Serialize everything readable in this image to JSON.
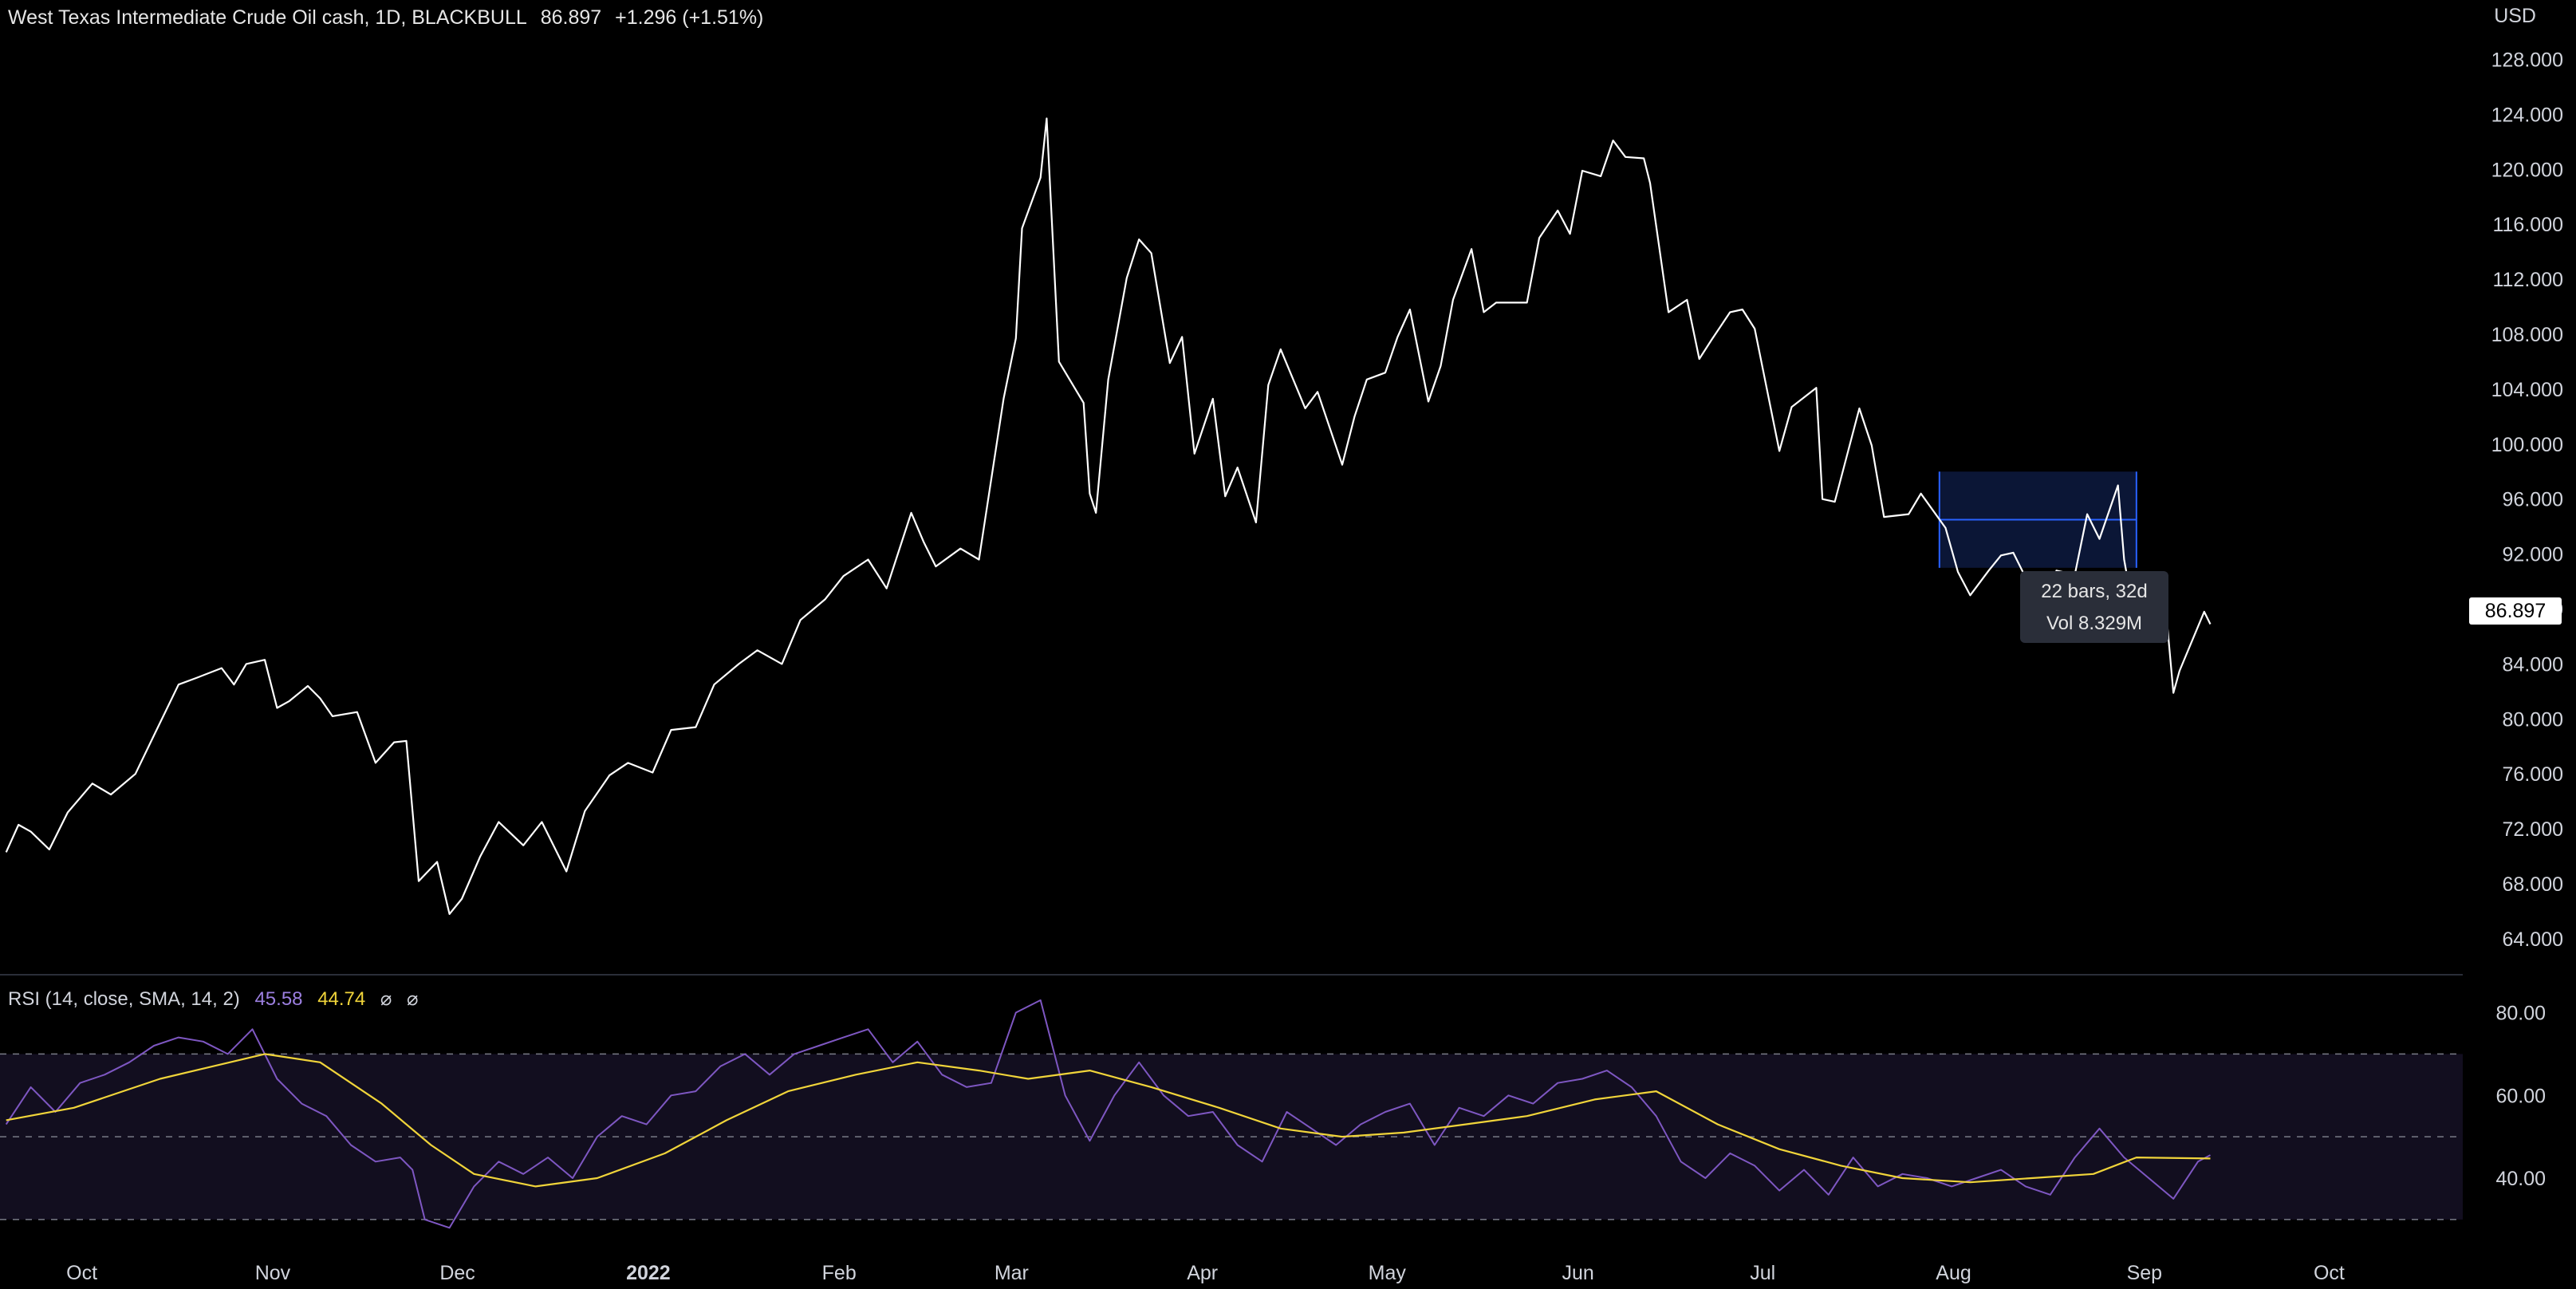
{
  "header": {
    "symbol": "West Texas Intermediate Crude Oil cash, 1D, BLACKBULL",
    "last": "86.897",
    "change": "+1.296 (+1.51%)"
  },
  "currency": "USD",
  "price_tag": "86.897",
  "measure_tooltip": {
    "line1": "22 bars, 32d",
    "line2": "Vol 8.329M"
  },
  "rsi_legend": {
    "label": "RSI (14, close, SMA, 14, 2)",
    "rsi": "45.58",
    "sma": "44.74",
    "icons": [
      "eye-off-icon",
      "eye-off-icon"
    ],
    "icon_glyph": "⌀"
  },
  "colors": {
    "price": "#ffffff",
    "rsi": "#7e57c2",
    "rsi_sma": "#f0d43a",
    "band": "#120e1f",
    "selection": "#0b1636",
    "selection_line": "#2962ff"
  },
  "chart_data": {
    "type": "line",
    "title": "West Texas Intermediate Crude Oil cash, 1D, BLACKBULL",
    "xlabel": "",
    "ylabel": "",
    "x_ticks": [
      "Oct",
      "Nov",
      "Dec",
      "2022",
      "Feb",
      "Mar",
      "Apr",
      "May",
      "Jun",
      "Jul",
      "Aug",
      "Sep",
      "Oct"
    ],
    "x_tick_dates": [
      "2021-10-01",
      "2021-11-01",
      "2021-12-01",
      "2022-01-01",
      "2022-02-01",
      "2022-03-01",
      "2022-04-01",
      "2022-05-01",
      "2022-06-01",
      "2022-07-01",
      "2022-08-01",
      "2022-09-01",
      "2022-10-01"
    ],
    "y_ticks": [
      "64.000",
      "68.000",
      "72.000",
      "76.000",
      "80.000",
      "84.000",
      "88.000",
      "92.000",
      "96.000",
      "100.000",
      "104.000",
      "108.000",
      "112.000",
      "116.000",
      "120.000",
      "124.000",
      "128.000"
    ],
    "ylim": [
      61.5,
      130
    ],
    "series": [
      {
        "points": [
          [
            "2021-09-20",
            70.3
          ],
          [
            "2021-09-22",
            72.3
          ],
          [
            "2021-09-24",
            71.8
          ],
          [
            "2021-09-27",
            70.5
          ],
          [
            "2021-09-30",
            73.2
          ],
          [
            "2021-10-04",
            75.3
          ],
          [
            "2021-10-07",
            74.5
          ],
          [
            "2021-10-11",
            76.0
          ],
          [
            "2021-10-14",
            78.8
          ],
          [
            "2021-10-18",
            82.5
          ],
          [
            "2021-10-21",
            83.0
          ],
          [
            "2021-10-25",
            83.7
          ],
          [
            "2021-10-27",
            82.5
          ],
          [
            "2021-10-29",
            84.0
          ],
          [
            "2021-11-01",
            84.3
          ],
          [
            "2021-11-03",
            80.8
          ],
          [
            "2021-11-05",
            81.3
          ],
          [
            "2021-11-08",
            82.4
          ],
          [
            "2021-11-10",
            81.5
          ],
          [
            "2021-11-12",
            80.2
          ],
          [
            "2021-11-16",
            80.5
          ],
          [
            "2021-11-19",
            76.8
          ],
          [
            "2021-11-22",
            78.3
          ],
          [
            "2021-11-24",
            78.4
          ],
          [
            "2021-11-26",
            68.2
          ],
          [
            "2021-11-29",
            69.6
          ],
          [
            "2021-12-01",
            65.8
          ],
          [
            "2021-12-03",
            66.9
          ],
          [
            "2021-12-06",
            70.0
          ],
          [
            "2021-12-09",
            72.5
          ],
          [
            "2021-12-13",
            70.8
          ],
          [
            "2021-12-16",
            72.5
          ],
          [
            "2021-12-20",
            68.9
          ],
          [
            "2021-12-23",
            73.3
          ],
          [
            "2021-12-27",
            75.9
          ],
          [
            "2021-12-30",
            76.8
          ],
          [
            "2022-01-03",
            76.1
          ],
          [
            "2022-01-06",
            79.2
          ],
          [
            "2022-01-10",
            79.4
          ],
          [
            "2022-01-13",
            82.5
          ],
          [
            "2022-01-17",
            84.0
          ],
          [
            "2022-01-20",
            85.0
          ],
          [
            "2022-01-24",
            84.0
          ],
          [
            "2022-01-27",
            87.2
          ],
          [
            "2022-01-31",
            88.7
          ],
          [
            "2022-02-03",
            90.4
          ],
          [
            "2022-02-07",
            91.6
          ],
          [
            "2022-02-10",
            89.5
          ],
          [
            "2022-02-14",
            95.0
          ],
          [
            "2022-02-16",
            92.9
          ],
          [
            "2022-02-18",
            91.1
          ],
          [
            "2022-02-22",
            92.4
          ],
          [
            "2022-02-25",
            91.6
          ],
          [
            "2022-03-01",
            103.3
          ],
          [
            "2022-03-03",
            107.7
          ],
          [
            "2022-03-04",
            115.7
          ],
          [
            "2022-03-07",
            119.4
          ],
          [
            "2022-03-08",
            123.7
          ],
          [
            "2022-03-10",
            106.0
          ],
          [
            "2022-03-14",
            103.0
          ],
          [
            "2022-03-15",
            96.4
          ],
          [
            "2022-03-16",
            95.0
          ],
          [
            "2022-03-18",
            104.7
          ],
          [
            "2022-03-21",
            112.1
          ],
          [
            "2022-03-23",
            114.9
          ],
          [
            "2022-03-25",
            113.9
          ],
          [
            "2022-03-28",
            105.9
          ],
          [
            "2022-03-30",
            107.8
          ],
          [
            "2022-04-01",
            99.3
          ],
          [
            "2022-04-04",
            103.3
          ],
          [
            "2022-04-06",
            96.2
          ],
          [
            "2022-04-08",
            98.3
          ],
          [
            "2022-04-11",
            94.3
          ],
          [
            "2022-04-13",
            104.3
          ],
          [
            "2022-04-15",
            106.9
          ],
          [
            "2022-04-19",
            102.6
          ],
          [
            "2022-04-21",
            103.8
          ],
          [
            "2022-04-25",
            98.5
          ],
          [
            "2022-04-27",
            102.0
          ],
          [
            "2022-04-29",
            104.7
          ],
          [
            "2022-05-02",
            105.2
          ],
          [
            "2022-05-04",
            107.8
          ],
          [
            "2022-05-06",
            109.8
          ],
          [
            "2022-05-09",
            103.1
          ],
          [
            "2022-05-11",
            105.7
          ],
          [
            "2022-05-13",
            110.5
          ],
          [
            "2022-05-16",
            114.2
          ],
          [
            "2022-05-18",
            109.6
          ],
          [
            "2022-05-20",
            110.3
          ],
          [
            "2022-05-23",
            110.3
          ],
          [
            "2022-05-25",
            110.3
          ],
          [
            "2022-05-27",
            115.0
          ],
          [
            "2022-05-30",
            117.0
          ],
          [
            "2022-06-01",
            115.3
          ],
          [
            "2022-06-03",
            119.9
          ],
          [
            "2022-06-06",
            119.5
          ],
          [
            "2022-06-08",
            122.1
          ],
          [
            "2022-06-10",
            120.9
          ],
          [
            "2022-06-13",
            120.8
          ],
          [
            "2022-06-14",
            119.0
          ],
          [
            "2022-06-17",
            109.6
          ],
          [
            "2022-06-20",
            110.5
          ],
          [
            "2022-06-22",
            106.2
          ],
          [
            "2022-06-24",
            107.6
          ],
          [
            "2022-06-27",
            109.6
          ],
          [
            "2022-06-29",
            109.8
          ],
          [
            "2022-07-01",
            108.4
          ],
          [
            "2022-07-05",
            99.5
          ],
          [
            "2022-07-07",
            102.7
          ],
          [
            "2022-07-11",
            104.1
          ],
          [
            "2022-07-12",
            96.0
          ],
          [
            "2022-07-14",
            95.8
          ],
          [
            "2022-07-18",
            102.6
          ],
          [
            "2022-07-20",
            99.9
          ],
          [
            "2022-07-22",
            94.7
          ],
          [
            "2022-07-26",
            94.9
          ],
          [
            "2022-07-28",
            96.4
          ],
          [
            "2022-08-01",
            93.9
          ],
          [
            "2022-08-03",
            90.7
          ],
          [
            "2022-08-05",
            89.0
          ],
          [
            "2022-08-08",
            90.8
          ],
          [
            "2022-08-10",
            91.9
          ],
          [
            "2022-08-12",
            92.1
          ],
          [
            "2022-08-15",
            89.4
          ],
          [
            "2022-08-17",
            88.1
          ],
          [
            "2022-08-19",
            90.8
          ],
          [
            "2022-08-22",
            90.5
          ],
          [
            "2022-08-24",
            94.9
          ],
          [
            "2022-08-26",
            93.1
          ],
          [
            "2022-08-29",
            97.0
          ],
          [
            "2022-08-30",
            91.6
          ],
          [
            "2022-09-01",
            86.6
          ],
          [
            "2022-09-05",
            86.9
          ],
          [
            "2022-09-06",
            86.9
          ],
          [
            "2022-09-07",
            81.9
          ],
          [
            "2022-09-08",
            83.5
          ],
          [
            "2022-09-12",
            87.8
          ],
          [
            "2022-09-13",
            86.9
          ]
        ]
      }
    ]
  },
  "rsi_chart": {
    "type": "line",
    "y_ticks": [
      "40.00",
      "60.00",
      "80.00"
    ],
    "ylim": [
      24,
      88
    ],
    "bands": [
      30,
      50,
      70
    ],
    "rsi": [
      [
        "2021-09-20",
        53
      ],
      [
        "2021-09-24",
        62
      ],
      [
        "2021-09-28",
        56
      ],
      [
        "2021-10-02",
        63
      ],
      [
        "2021-10-06",
        65
      ],
      [
        "2021-10-10",
        68
      ],
      [
        "2021-10-14",
        72
      ],
      [
        "2021-10-18",
        74
      ],
      [
        "2021-10-22",
        73
      ],
      [
        "2021-10-26",
        70
      ],
      [
        "2021-10-30",
        76
      ],
      [
        "2021-11-03",
        64
      ],
      [
        "2021-11-07",
        58
      ],
      [
        "2021-11-11",
        55
      ],
      [
        "2021-11-15",
        48
      ],
      [
        "2021-11-19",
        44
      ],
      [
        "2021-11-23",
        45
      ],
      [
        "2021-11-25",
        42
      ],
      [
        "2021-11-27",
        30
      ],
      [
        "2021-12-01",
        28
      ],
      [
        "2021-12-05",
        38
      ],
      [
        "2021-12-09",
        44
      ],
      [
        "2021-12-13",
        41
      ],
      [
        "2021-12-17",
        45
      ],
      [
        "2021-12-21",
        40
      ],
      [
        "2021-12-25",
        50
      ],
      [
        "2021-12-29",
        55
      ],
      [
        "2022-01-02",
        53
      ],
      [
        "2022-01-06",
        60
      ],
      [
        "2022-01-10",
        61
      ],
      [
        "2022-01-14",
        67
      ],
      [
        "2022-01-18",
        70
      ],
      [
        "2022-01-22",
        65
      ],
      [
        "2022-01-26",
        70
      ],
      [
        "2022-01-30",
        72
      ],
      [
        "2022-02-03",
        74
      ],
      [
        "2022-02-07",
        76
      ],
      [
        "2022-02-11",
        68
      ],
      [
        "2022-02-15",
        73
      ],
      [
        "2022-02-19",
        65
      ],
      [
        "2022-02-23",
        62
      ],
      [
        "2022-02-27",
        63
      ],
      [
        "2022-03-03",
        80
      ],
      [
        "2022-03-07",
        83
      ],
      [
        "2022-03-11",
        60
      ],
      [
        "2022-03-15",
        49
      ],
      [
        "2022-03-19",
        60
      ],
      [
        "2022-03-23",
        68
      ],
      [
        "2022-03-27",
        60
      ],
      [
        "2022-03-31",
        55
      ],
      [
        "2022-04-04",
        56
      ],
      [
        "2022-04-08",
        48
      ],
      [
        "2022-04-12",
        44
      ],
      [
        "2022-04-16",
        56
      ],
      [
        "2022-04-20",
        52
      ],
      [
        "2022-04-24",
        48
      ],
      [
        "2022-04-28",
        53
      ],
      [
        "2022-05-02",
        56
      ],
      [
        "2022-05-06",
        58
      ],
      [
        "2022-05-10",
        48
      ],
      [
        "2022-05-14",
        57
      ],
      [
        "2022-05-18",
        55
      ],
      [
        "2022-05-22",
        60
      ],
      [
        "2022-05-26",
        58
      ],
      [
        "2022-05-30",
        63
      ],
      [
        "2022-06-03",
        64
      ],
      [
        "2022-06-07",
        66
      ],
      [
        "2022-06-11",
        62
      ],
      [
        "2022-06-15",
        55
      ],
      [
        "2022-06-19",
        44
      ],
      [
        "2022-06-23",
        40
      ],
      [
        "2022-06-27",
        46
      ],
      [
        "2022-07-01",
        43
      ],
      [
        "2022-07-05",
        37
      ],
      [
        "2022-07-09",
        42
      ],
      [
        "2022-07-13",
        36
      ],
      [
        "2022-07-17",
        45
      ],
      [
        "2022-07-21",
        38
      ],
      [
        "2022-07-25",
        41
      ],
      [
        "2022-07-29",
        40
      ],
      [
        "2022-08-02",
        38
      ],
      [
        "2022-08-06",
        40
      ],
      [
        "2022-08-10",
        42
      ],
      [
        "2022-08-14",
        38
      ],
      [
        "2022-08-18",
        36
      ],
      [
        "2022-08-22",
        45
      ],
      [
        "2022-08-26",
        52
      ],
      [
        "2022-08-30",
        45
      ],
      [
        "2022-09-03",
        40
      ],
      [
        "2022-09-07",
        35
      ],
      [
        "2022-09-11",
        44
      ],
      [
        "2022-09-13",
        45.58
      ]
    ],
    "sma": [
      [
        "2021-09-20",
        54
      ],
      [
        "2021-10-01",
        57
      ],
      [
        "2021-10-15",
        64
      ],
      [
        "2021-11-01",
        70
      ],
      [
        "2021-11-10",
        68
      ],
      [
        "2021-11-20",
        58
      ],
      [
        "2021-11-28",
        48
      ],
      [
        "2021-12-05",
        41
      ],
      [
        "2021-12-15",
        38
      ],
      [
        "2021-12-25",
        40
      ],
      [
        "2022-01-05",
        46
      ],
      [
        "2022-01-15",
        54
      ],
      [
        "2022-01-25",
        61
      ],
      [
        "2022-02-05",
        65
      ],
      [
        "2022-02-15",
        68
      ],
      [
        "2022-02-25",
        66
      ],
      [
        "2022-03-05",
        64
      ],
      [
        "2022-03-15",
        66
      ],
      [
        "2022-03-25",
        62
      ],
      [
        "2022-04-05",
        57
      ],
      [
        "2022-04-15",
        52
      ],
      [
        "2022-04-25",
        50
      ],
      [
        "2022-05-05",
        51
      ],
      [
        "2022-05-15",
        53
      ],
      [
        "2022-05-25",
        55
      ],
      [
        "2022-06-05",
        59
      ],
      [
        "2022-06-15",
        61
      ],
      [
        "2022-06-25",
        53
      ],
      [
        "2022-07-05",
        47
      ],
      [
        "2022-07-15",
        43
      ],
      [
        "2022-07-25",
        40
      ],
      [
        "2022-08-05",
        39
      ],
      [
        "2022-08-15",
        40
      ],
      [
        "2022-08-25",
        41
      ],
      [
        "2022-09-01",
        45
      ],
      [
        "2022-09-13",
        44.74
      ]
    ]
  }
}
